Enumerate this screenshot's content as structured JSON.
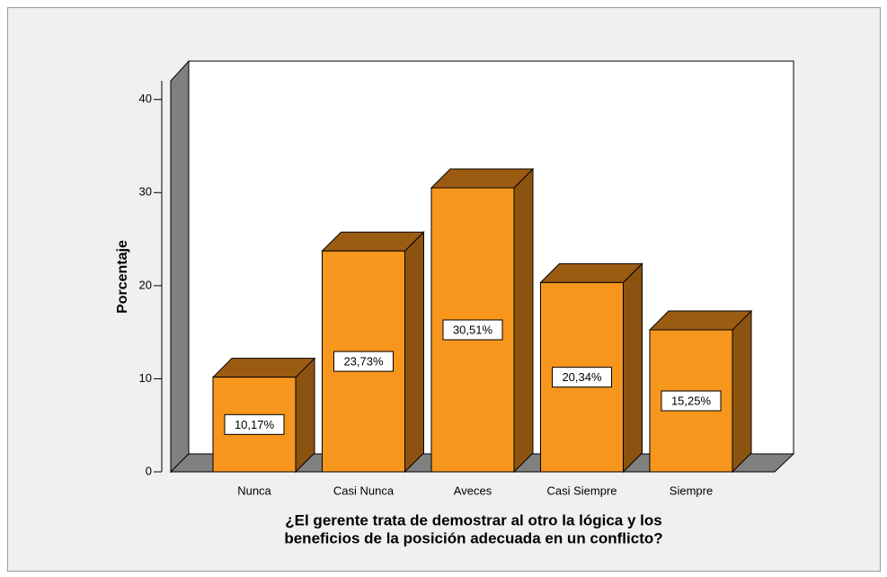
{
  "chart_data": {
    "type": "bar3d",
    "ylabel": "Porcentaje",
    "xlabel": [
      "¿El gerente trata de demostrar al otro la lógica y los",
      "beneficios de la posición adecuada en un conflicto?"
    ],
    "categories": [
      "Nunca",
      "Casi Nunca",
      "Aveces",
      "Casi Siempre",
      "Siempre"
    ],
    "values": [
      10.17,
      23.73,
      30.51,
      20.34,
      15.25
    ],
    "value_labels": [
      "10,17%",
      "23,73%",
      "30,51%",
      "20,34%",
      "15,25%"
    ],
    "color": "#f7961d",
    "ylim": [
      0,
      42
    ],
    "yticks": [
      0,
      10,
      20,
      30,
      40
    ]
  }
}
